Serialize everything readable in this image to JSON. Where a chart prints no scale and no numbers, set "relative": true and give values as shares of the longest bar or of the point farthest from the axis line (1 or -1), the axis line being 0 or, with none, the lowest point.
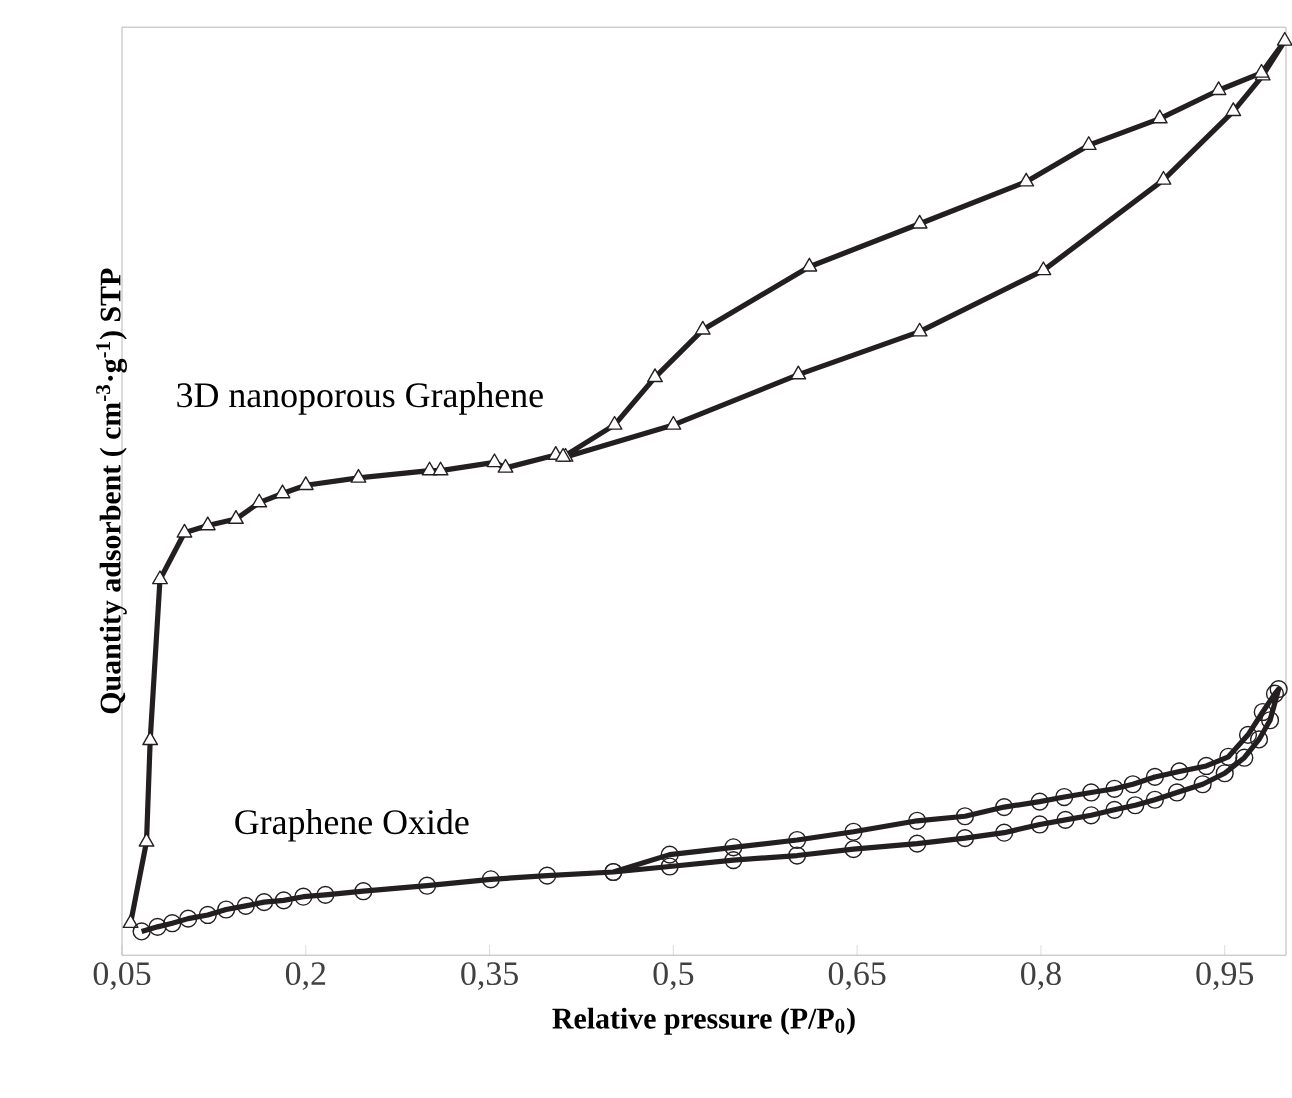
{
  "chart_data": {
    "type": "line",
    "relative": true,
    "xlabel": "Relative pressure (P/P$_{0}$)",
    "ylabel": "Quantity adsorbent ( cm$^{-3}$·g$^{-1}$) STP",
    "xlim": [
      0.05,
      1.0
    ],
    "xticks": [
      {
        "value": 0.05,
        "label": "0,05"
      },
      {
        "value": 0.2,
        "label": "0,2"
      },
      {
        "value": 0.35,
        "label": "0,35"
      },
      {
        "value": 0.5,
        "label": "0,5"
      },
      {
        "value": 0.65,
        "label": "0,65"
      },
      {
        "value": 0.8,
        "label": "0,8"
      },
      {
        "value": 0.95,
        "label": "0,95"
      }
    ],
    "series": [
      {
        "name": "3D nanoporous Graphene",
        "color": "#231f20",
        "marker": "triangle",
        "x": [
          0.057,
          0.07,
          0.073,
          0.081,
          0.101,
          0.12,
          0.143,
          0.162,
          0.181,
          0.2,
          0.243,
          0.301,
          0.31,
          0.354,
          0.363,
          0.404,
          0.412,
          0.5,
          0.602,
          0.701,
          0.802,
          0.9,
          0.957,
          0.981,
          0.999,
          0.98,
          0.945,
          0.897,
          0.839,
          0.788,
          0.701,
          0.611,
          0.524,
          0.485,
          0.452,
          0.41
        ],
        "values": [
          0.035,
          0.124,
          0.235,
          0.411,
          0.462,
          0.47,
          0.477,
          0.495,
          0.505,
          0.514,
          0.522,
          0.53,
          0.53,
          0.539,
          0.533,
          0.547,
          0.545,
          0.58,
          0.635,
          0.682,
          0.749,
          0.848,
          0.923,
          0.962,
          1.0,
          0.965,
          0.946,
          0.915,
          0.886,
          0.846,
          0.8,
          0.753,
          0.684,
          0.632,
          0.58,
          0.545
        ]
      },
      {
        "name": "Graphene Oxide",
        "color": "#231f20",
        "marker": "circle",
        "x": [
          0.066,
          0.079,
          0.091,
          0.104,
          0.12,
          0.135,
          0.151,
          0.166,
          0.182,
          0.198,
          0.216,
          0.247,
          0.299,
          0.351,
          0.397,
          0.451,
          0.497,
          0.549,
          0.601,
          0.647,
          0.699,
          0.738,
          0.77,
          0.799,
          0.82,
          0.841,
          0.86,
          0.877,
          0.893,
          0.911,
          0.932,
          0.95,
          0.966,
          0.978,
          0.987,
          0.994,
          0.991,
          0.981,
          0.969,
          0.953,
          0.935,
          0.913,
          0.893,
          0.875,
          0.86,
          0.841,
          0.819,
          0.799,
          0.77,
          0.738,
          0.699,
          0.647,
          0.601,
          0.549,
          0.497,
          0.451
        ],
        "values": [
          0.026,
          0.031,
          0.035,
          0.04,
          0.044,
          0.05,
          0.054,
          0.058,
          0.06,
          0.064,
          0.066,
          0.07,
          0.076,
          0.083,
          0.087,
          0.091,
          0.097,
          0.104,
          0.109,
          0.116,
          0.122,
          0.128,
          0.134,
          0.143,
          0.148,
          0.153,
          0.159,
          0.164,
          0.17,
          0.178,
          0.187,
          0.199,
          0.216,
          0.236,
          0.257,
          0.291,
          0.286,
          0.266,
          0.241,
          0.217,
          0.207,
          0.201,
          0.195,
          0.187,
          0.182,
          0.178,
          0.173,
          0.168,
          0.162,
          0.152,
          0.147,
          0.135,
          0.126,
          0.118,
          0.11,
          0.091
        ]
      }
    ]
  }
}
